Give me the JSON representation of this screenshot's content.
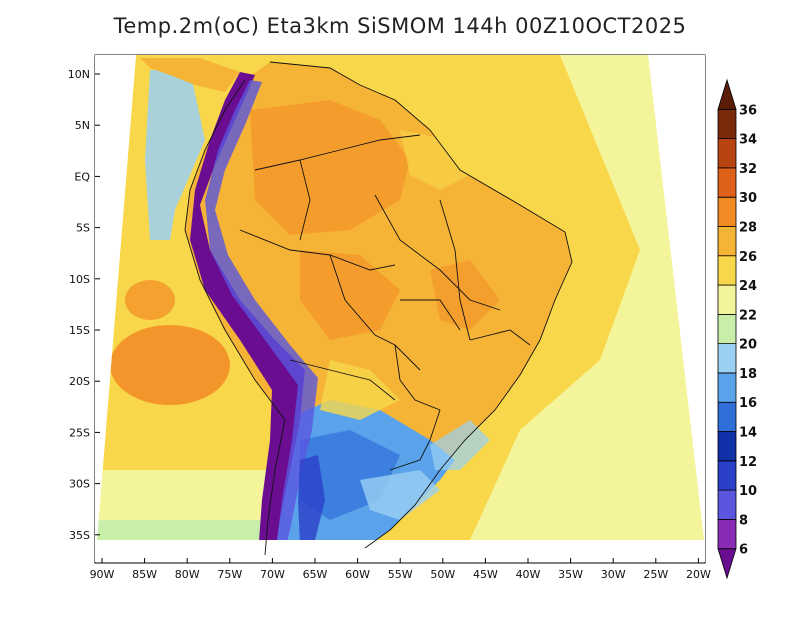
{
  "title": "Temp.2m(oC) Eta3km SiSMOM 144h 00Z10OCT2025",
  "lat_labels": [
    "10N",
    "5N",
    "EQ",
    "5S",
    "10S",
    "15S",
    "20S",
    "25S",
    "30S",
    "35S"
  ],
  "lat_values": [
    10,
    5,
    0,
    -5,
    -10,
    -15,
    -20,
    -25,
    -30,
    -35
  ],
  "lon_labels": [
    "90W",
    "85W",
    "80W",
    "75W",
    "70W",
    "65W",
    "60W",
    "55W",
    "50W",
    "45W",
    "40W",
    "35W",
    "30W",
    "25W",
    "20W"
  ],
  "lon_values": [
    -90,
    -85,
    -80,
    -75,
    -70,
    -65,
    -60,
    -55,
    -50,
    -45,
    -40,
    -35,
    -30,
    -25,
    -20
  ],
  "colorbar": {
    "levels": [
      "6",
      "8",
      "10",
      "12",
      "14",
      "16",
      "18",
      "20",
      "22",
      "24",
      "26",
      "28",
      "30",
      "32",
      "34",
      "36"
    ],
    "colors": [
      "#6a0d91",
      "#8a2bb5",
      "#5a56e0",
      "#2a40c8",
      "#1030a8",
      "#2f6fd8",
      "#5aa3ea",
      "#9ad0f2",
      "#c8eeaa",
      "#f4f49a",
      "#f8d84a",
      "#f6b436",
      "#f28a24",
      "#e0621a",
      "#b84412",
      "#7a2a0a",
      "#5a1e08"
    ]
  },
  "colors": {
    "ocean_warm": "#f8d84a",
    "ocean_cool": "#f4f49a",
    "land_hot": "#f6b436",
    "land_very_hot": "#f28a24",
    "andes": "#6a0d91",
    "south_cool": "#5aa3ea"
  }
}
